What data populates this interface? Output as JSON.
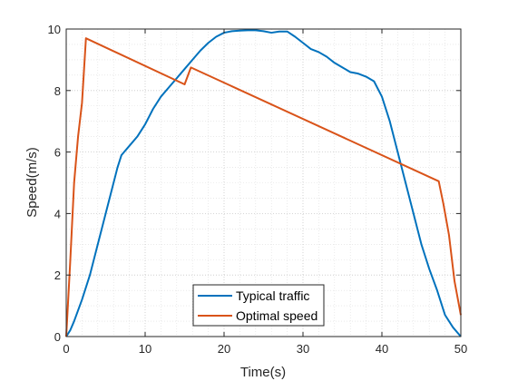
{
  "chart_data": {
    "type": "line",
    "title": "",
    "xlabel": "Time(s)",
    "ylabel": "Speed(m/s)",
    "xlim": [
      0,
      50
    ],
    "ylim": [
      0,
      10
    ],
    "xticks": [
      0,
      10,
      20,
      30,
      40,
      50
    ],
    "yticks": [
      0,
      2,
      4,
      6,
      8,
      10
    ],
    "grid": "major and minor, dotted",
    "legend_position": "bottom-center",
    "series": [
      {
        "name": "Typical traffic",
        "color": "#0072BD",
        "x": [
          0,
          0.5,
          1,
          2,
          3,
          4,
          5,
          6,
          6.5,
          7,
          8,
          9,
          10,
          11,
          12,
          13,
          14,
          15,
          16,
          17,
          18,
          19,
          20,
          21,
          22,
          23,
          24,
          25,
          26,
          27,
          28,
          29,
          30,
          31,
          32,
          33,
          34,
          35,
          36,
          37,
          38,
          39,
          40,
          41,
          42,
          43,
          44,
          45,
          46,
          47,
          48,
          49,
          50
        ],
        "y": [
          0,
          0.2,
          0.5,
          1.2,
          2.0,
          3.0,
          4.0,
          5.0,
          5.5,
          5.9,
          6.2,
          6.5,
          6.9,
          7.4,
          7.8,
          8.1,
          8.4,
          8.7,
          9.0,
          9.3,
          9.55,
          9.75,
          9.88,
          9.93,
          9.95,
          9.96,
          9.96,
          9.93,
          9.88,
          9.92,
          9.92,
          9.75,
          9.55,
          9.35,
          9.25,
          9.1,
          8.9,
          8.75,
          8.6,
          8.55,
          8.45,
          8.3,
          7.8,
          7.0,
          6.0,
          5.0,
          4.0,
          3.0,
          2.2,
          1.5,
          0.7,
          0.3,
          0
        ]
      },
      {
        "name": "Optimal speed",
        "color": "#D95319",
        "x": [
          0,
          0.5,
          1,
          1.5,
          2,
          2.5,
          15,
          15.8,
          47.2,
          47.8,
          48.5,
          49.2,
          50
        ],
        "y": [
          0,
          2.4,
          5.0,
          6.5,
          7.6,
          9.7,
          8.2,
          8.75,
          5.05,
          4.3,
          3.3,
          1.8,
          0.7
        ]
      }
    ]
  }
}
